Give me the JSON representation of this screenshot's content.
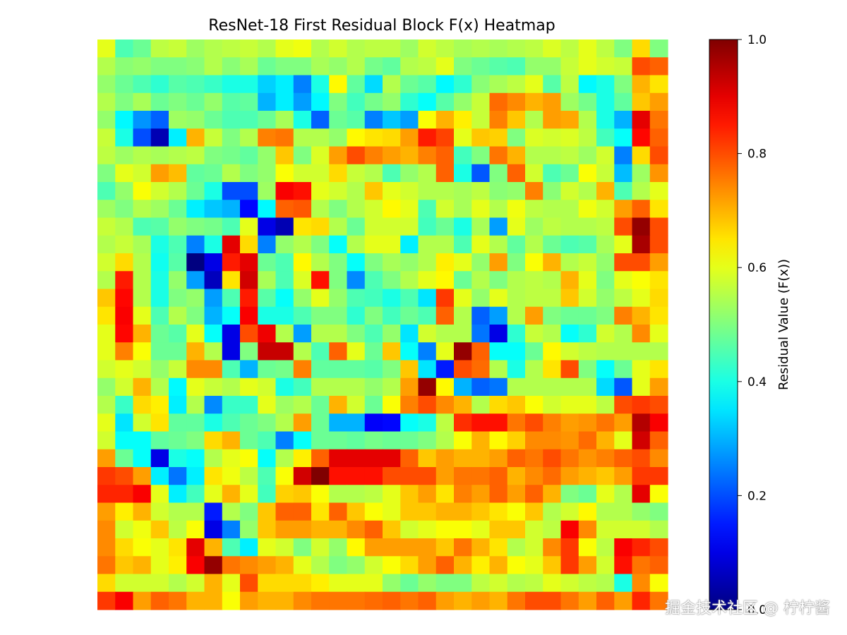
{
  "chart_data": {
    "type": "heatmap",
    "title": "ResNet-18 First Residual Block F(x) Heatmap",
    "colormap": "jet",
    "vmin": 0.0,
    "vmax": 1.0,
    "colorbar": {
      "label": "Residual Value (F(x))",
      "ticks": [
        {
          "value": 0.0,
          "label": "0.0"
        },
        {
          "value": 0.2,
          "label": "0.2"
        },
        {
          "value": 0.4,
          "label": "0.4"
        },
        {
          "value": 0.6,
          "label": "0.6"
        },
        {
          "value": 0.8,
          "label": "0.8"
        },
        {
          "value": 1.0,
          "label": "1.0"
        }
      ]
    },
    "axes_visible": false,
    "rows": 32,
    "cols": 32,
    "values": [
      [
        0.6,
        0.45,
        0.48,
        0.56,
        0.57,
        0.53,
        0.55,
        0.56,
        0.57,
        0.55,
        0.6,
        0.61,
        0.55,
        0.58,
        0.55,
        0.56,
        0.56,
        0.53,
        0.58,
        0.56,
        0.54,
        0.55,
        0.54,
        0.55,
        0.56,
        0.59,
        0.56,
        0.6,
        0.56,
        0.5,
        0.66,
        0.5
      ],
      [
        0.55,
        0.51,
        0.52,
        0.5,
        0.5,
        0.51,
        0.55,
        0.51,
        0.54,
        0.48,
        0.5,
        0.5,
        0.54,
        0.52,
        0.55,
        0.49,
        0.47,
        0.55,
        0.56,
        0.6,
        0.5,
        0.48,
        0.46,
        0.45,
        0.52,
        0.52,
        0.57,
        0.6,
        0.58,
        0.57,
        0.8,
        0.78
      ],
      [
        0.52,
        0.48,
        0.45,
        0.42,
        0.46,
        0.45,
        0.43,
        0.4,
        0.4,
        0.33,
        0.36,
        0.25,
        0.4,
        0.63,
        0.47,
        0.34,
        0.55,
        0.48,
        0.46,
        0.37,
        0.42,
        0.51,
        0.54,
        0.56,
        0.6,
        0.46,
        0.56,
        0.37,
        0.4,
        0.5,
        0.7,
        0.65
      ],
      [
        0.55,
        0.5,
        0.54,
        0.48,
        0.5,
        0.48,
        0.52,
        0.46,
        0.47,
        0.3,
        0.36,
        0.28,
        0.37,
        0.5,
        0.44,
        0.49,
        0.52,
        0.42,
        0.38,
        0.46,
        0.52,
        0.57,
        0.77,
        0.74,
        0.7,
        0.72,
        0.53,
        0.49,
        0.4,
        0.47,
        0.68,
        0.72
      ],
      [
        0.52,
        0.37,
        0.27,
        0.22,
        0.53,
        0.52,
        0.48,
        0.45,
        0.45,
        0.48,
        0.54,
        0.4,
        0.22,
        0.48,
        0.46,
        0.25,
        0.32,
        0.28,
        0.62,
        0.7,
        0.64,
        0.57,
        0.75,
        0.68,
        0.55,
        0.72,
        0.71,
        0.55,
        0.4,
        0.3,
        0.9,
        0.76
      ],
      [
        0.57,
        0.4,
        0.2,
        0.05,
        0.36,
        0.7,
        0.57,
        0.5,
        0.55,
        0.75,
        0.76,
        0.55,
        0.55,
        0.52,
        0.63,
        0.65,
        0.66,
        0.72,
        0.85,
        0.81,
        0.6,
        0.68,
        0.67,
        0.5,
        0.59,
        0.58,
        0.59,
        0.56,
        0.44,
        0.38,
        0.87,
        0.78
      ],
      [
        0.56,
        0.53,
        0.55,
        0.54,
        0.55,
        0.56,
        0.5,
        0.49,
        0.47,
        0.52,
        0.68,
        0.5,
        0.59,
        0.72,
        0.8,
        0.75,
        0.72,
        0.7,
        0.75,
        0.78,
        0.44,
        0.5,
        0.76,
        0.7,
        0.55,
        0.55,
        0.56,
        0.53,
        0.58,
        0.25,
        0.66,
        0.8
      ],
      [
        0.5,
        0.6,
        0.58,
        0.72,
        0.69,
        0.47,
        0.48,
        0.55,
        0.5,
        0.52,
        0.62,
        0.58,
        0.58,
        0.66,
        0.57,
        0.55,
        0.45,
        0.52,
        0.55,
        0.78,
        0.4,
        0.21,
        0.5,
        0.78,
        0.58,
        0.45,
        0.48,
        0.62,
        0.57,
        0.31,
        0.53,
        0.73
      ],
      [
        0.45,
        0.52,
        0.62,
        0.58,
        0.55,
        0.48,
        0.4,
        0.2,
        0.2,
        0.53,
        0.88,
        0.86,
        0.6,
        0.58,
        0.55,
        0.68,
        0.6,
        0.58,
        0.55,
        0.55,
        0.54,
        0.56,
        0.51,
        0.52,
        0.75,
        0.51,
        0.58,
        0.55,
        0.7,
        0.45,
        0.55,
        0.6
      ],
      [
        0.53,
        0.5,
        0.55,
        0.53,
        0.48,
        0.36,
        0.32,
        0.3,
        0.13,
        0.37,
        0.78,
        0.79,
        0.55,
        0.5,
        0.55,
        0.58,
        0.63,
        0.6,
        0.45,
        0.58,
        0.54,
        0.6,
        0.55,
        0.61,
        0.56,
        0.55,
        0.55,
        0.61,
        0.58,
        0.72,
        0.78,
        0.65
      ],
      [
        0.57,
        0.55,
        0.45,
        0.46,
        0.52,
        0.5,
        0.49,
        0.45,
        0.6,
        0.1,
        0.05,
        0.65,
        0.66,
        0.55,
        0.48,
        0.58,
        0.58,
        0.58,
        0.44,
        0.48,
        0.4,
        0.54,
        0.28,
        0.6,
        0.53,
        0.56,
        0.55,
        0.55,
        0.56,
        0.8,
        0.98,
        0.8
      ],
      [
        0.55,
        0.57,
        0.54,
        0.4,
        0.45,
        0.25,
        0.4,
        0.9,
        0.66,
        0.25,
        0.52,
        0.55,
        0.5,
        0.38,
        0.55,
        0.6,
        0.6,
        0.36,
        0.55,
        0.55,
        0.45,
        0.6,
        0.55,
        0.47,
        0.55,
        0.48,
        0.45,
        0.46,
        0.54,
        0.6,
        0.96,
        0.8
      ],
      [
        0.58,
        0.66,
        0.55,
        0.39,
        0.46,
        0.0,
        0.1,
        0.85,
        0.9,
        0.48,
        0.45,
        0.63,
        0.55,
        0.5,
        0.38,
        0.5,
        0.54,
        0.52,
        0.55,
        0.64,
        0.6,
        0.52,
        0.72,
        0.5,
        0.62,
        0.7,
        0.55,
        0.57,
        0.52,
        0.8,
        0.8,
        0.72
      ],
      [
        0.55,
        0.85,
        0.55,
        0.4,
        0.52,
        0.28,
        0.06,
        0.65,
        0.92,
        0.54,
        0.45,
        0.59,
        0.86,
        0.5,
        0.26,
        0.45,
        0.5,
        0.55,
        0.6,
        0.63,
        0.48,
        0.55,
        0.5,
        0.55,
        0.56,
        0.55,
        0.7,
        0.6,
        0.5,
        0.6,
        0.62,
        0.65
      ],
      [
        0.68,
        0.87,
        0.55,
        0.4,
        0.5,
        0.52,
        0.28,
        0.45,
        0.85,
        0.46,
        0.38,
        0.52,
        0.6,
        0.52,
        0.45,
        0.44,
        0.4,
        0.45,
        0.35,
        0.82,
        0.6,
        0.52,
        0.6,
        0.55,
        0.56,
        0.56,
        0.68,
        0.58,
        0.52,
        0.56,
        0.6,
        0.66
      ],
      [
        0.65,
        0.88,
        0.6,
        0.45,
        0.55,
        0.5,
        0.3,
        0.38,
        0.88,
        0.4,
        0.4,
        0.45,
        0.5,
        0.5,
        0.42,
        0.5,
        0.44,
        0.48,
        0.45,
        0.78,
        0.55,
        0.22,
        0.28,
        0.55,
        0.72,
        0.5,
        0.48,
        0.48,
        0.5,
        0.75,
        0.7,
        0.65
      ],
      [
        0.6,
        0.87,
        0.7,
        0.48,
        0.46,
        0.6,
        0.38,
        0.1,
        0.8,
        0.89,
        0.55,
        0.28,
        0.55,
        0.55,
        0.5,
        0.45,
        0.52,
        0.35,
        0.58,
        0.55,
        0.55,
        0.24,
        0.1,
        0.42,
        0.57,
        0.55,
        0.38,
        0.42,
        0.58,
        0.55,
        0.74,
        0.6
      ],
      [
        0.6,
        0.75,
        0.62,
        0.48,
        0.48,
        0.7,
        0.55,
        0.1,
        0.5,
        0.93,
        0.93,
        0.55,
        0.45,
        0.78,
        0.6,
        0.48,
        0.68,
        0.38,
        0.25,
        0.6,
        0.98,
        0.78,
        0.38,
        0.38,
        0.48,
        0.63,
        0.58,
        0.56,
        0.55,
        0.55,
        0.55,
        0.55
      ],
      [
        0.58,
        0.6,
        0.58,
        0.52,
        0.57,
        0.74,
        0.74,
        0.45,
        0.3,
        0.48,
        0.49,
        0.75,
        0.47,
        0.47,
        0.47,
        0.46,
        0.5,
        0.68,
        0.35,
        0.15,
        0.8,
        0.77,
        0.55,
        0.4,
        0.55,
        0.65,
        0.8,
        0.5,
        0.38,
        0.48,
        0.6,
        0.65
      ],
      [
        0.52,
        0.58,
        0.7,
        0.55,
        0.37,
        0.6,
        0.57,
        0.55,
        0.6,
        0.58,
        0.4,
        0.44,
        0.55,
        0.55,
        0.55,
        0.52,
        0.55,
        0.72,
        0.98,
        0.63,
        0.3,
        0.22,
        0.24,
        0.55,
        0.55,
        0.55,
        0.55,
        0.55,
        0.34,
        0.21,
        0.6,
        0.72
      ],
      [
        0.55,
        0.43,
        0.66,
        0.64,
        0.36,
        0.55,
        0.26,
        0.43,
        0.43,
        0.6,
        0.53,
        0.55,
        0.48,
        0.7,
        0.58,
        0.48,
        0.62,
        0.75,
        0.8,
        0.74,
        0.7,
        0.55,
        0.66,
        0.68,
        0.62,
        0.58,
        0.6,
        0.6,
        0.56,
        0.8,
        0.82,
        0.8
      ],
      [
        0.6,
        0.35,
        0.58,
        0.65,
        0.47,
        0.47,
        0.4,
        0.45,
        0.48,
        0.5,
        0.55,
        0.72,
        0.48,
        0.3,
        0.3,
        0.12,
        0.13,
        0.38,
        0.4,
        0.56,
        0.83,
        0.86,
        0.86,
        0.76,
        0.8,
        0.75,
        0.72,
        0.73,
        0.76,
        0.72,
        0.95,
        0.88
      ],
      [
        0.58,
        0.38,
        0.38,
        0.47,
        0.48,
        0.5,
        0.66,
        0.7,
        0.48,
        0.45,
        0.25,
        0.38,
        0.48,
        0.48,
        0.47,
        0.49,
        0.48,
        0.48,
        0.5,
        0.55,
        0.62,
        0.7,
        0.63,
        0.67,
        0.74,
        0.74,
        0.73,
        0.77,
        0.7,
        0.6,
        0.92,
        0.78
      ],
      [
        0.72,
        0.48,
        0.38,
        0.1,
        0.4,
        0.38,
        0.55,
        0.6,
        0.62,
        0.38,
        0.55,
        0.64,
        0.78,
        0.9,
        0.9,
        0.9,
        0.9,
        0.78,
        0.68,
        0.72,
        0.7,
        0.7,
        0.72,
        0.78,
        0.76,
        0.8,
        0.76,
        0.73,
        0.75,
        0.78,
        0.8,
        0.74
      ],
      [
        0.82,
        0.8,
        0.72,
        0.36,
        0.24,
        0.36,
        0.65,
        0.61,
        0.56,
        0.45,
        0.62,
        0.92,
        1.0,
        0.86,
        0.86,
        0.86,
        0.8,
        0.8,
        0.8,
        0.72,
        0.76,
        0.76,
        0.78,
        0.7,
        0.74,
        0.77,
        0.72,
        0.7,
        0.68,
        0.72,
        0.82,
        0.82
      ],
      [
        0.84,
        0.84,
        0.88,
        0.6,
        0.36,
        0.44,
        0.6,
        0.7,
        0.6,
        0.44,
        0.67,
        0.68,
        0.62,
        0.55,
        0.55,
        0.56,
        0.6,
        0.68,
        0.72,
        0.65,
        0.75,
        0.72,
        0.78,
        0.72,
        0.78,
        0.7,
        0.5,
        0.48,
        0.6,
        0.55,
        0.9,
        0.62
      ],
      [
        0.72,
        0.64,
        0.7,
        0.58,
        0.55,
        0.55,
        0.15,
        0.55,
        0.5,
        0.68,
        0.78,
        0.78,
        0.65,
        0.78,
        0.68,
        0.62,
        0.6,
        0.68,
        0.68,
        0.7,
        0.7,
        0.68,
        0.65,
        0.62,
        0.68,
        0.55,
        0.58,
        0.63,
        0.55,
        0.55,
        0.52,
        0.5
      ],
      [
        0.74,
        0.58,
        0.61,
        0.68,
        0.56,
        0.62,
        0.1,
        0.25,
        0.52,
        0.68,
        0.72,
        0.72,
        0.7,
        0.7,
        0.74,
        0.78,
        0.68,
        0.58,
        0.6,
        0.62,
        0.62,
        0.6,
        0.68,
        0.68,
        0.58,
        0.56,
        0.88,
        0.74,
        0.58,
        0.58,
        0.58,
        0.55
      ],
      [
        0.74,
        0.66,
        0.62,
        0.6,
        0.65,
        0.9,
        0.7,
        0.45,
        0.36,
        0.6,
        0.58,
        0.5,
        0.58,
        0.52,
        0.63,
        0.72,
        0.72,
        0.72,
        0.72,
        0.68,
        0.76,
        0.7,
        0.65,
        0.55,
        0.58,
        0.74,
        0.82,
        0.62,
        0.56,
        0.88,
        0.84,
        0.8
      ],
      [
        0.76,
        0.68,
        0.7,
        0.6,
        0.64,
        0.88,
        0.98,
        0.76,
        0.74,
        0.72,
        0.7,
        0.6,
        0.55,
        0.5,
        0.52,
        0.58,
        0.62,
        0.66,
        0.72,
        0.78,
        0.7,
        0.64,
        0.7,
        0.62,
        0.6,
        0.68,
        0.82,
        0.72,
        0.58,
        0.86,
        0.76,
        0.78
      ],
      [
        0.66,
        0.58,
        0.58,
        0.58,
        0.55,
        0.58,
        0.7,
        0.6,
        0.8,
        0.66,
        0.66,
        0.66,
        0.64,
        0.6,
        0.6,
        0.6,
        0.52,
        0.48,
        0.52,
        0.5,
        0.5,
        0.56,
        0.58,
        0.55,
        0.56,
        0.6,
        0.58,
        0.56,
        0.55,
        0.4,
        0.74,
        0.62
      ],
      [
        0.82,
        0.88,
        0.72,
        0.78,
        0.76,
        0.7,
        0.7,
        0.62,
        0.72,
        0.7,
        0.7,
        0.74,
        0.76,
        0.76,
        0.76,
        0.77,
        0.78,
        0.76,
        0.78,
        0.72,
        0.7,
        0.72,
        0.7,
        0.76,
        0.8,
        0.8,
        0.76,
        0.72,
        0.78,
        0.72,
        0.84,
        0.76
      ]
    ]
  },
  "watermark": "掘金技术社区 @ 柠柠酱"
}
